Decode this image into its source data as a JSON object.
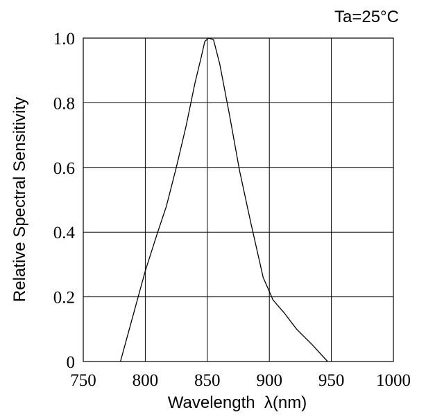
{
  "chart_data": {
    "type": "line",
    "annotation": "Ta=25°C",
    "xlabel": "Wavelength  λ(nm)",
    "ylabel": "Relative Spectral Sensitivity",
    "xlim": [
      750,
      1000
    ],
    "ylim": [
      0,
      1.0
    ],
    "x_ticks": [
      750,
      800,
      850,
      900,
      950,
      1000
    ],
    "x_tick_labels": [
      "750",
      "800",
      "850",
      "900",
      "950",
      "1000"
    ],
    "y_ticks": [
      0,
      0.2,
      0.4,
      0.6,
      0.8,
      1.0
    ],
    "y_tick_labels": [
      "0",
      "0.2",
      "0.4",
      "0.6",
      "0.8",
      "1.0"
    ],
    "grid": true,
    "series": [
      {
        "x": [
          780,
          790,
          800,
          810,
          817,
          825,
          833,
          840,
          845,
          848,
          851,
          855,
          860,
          868,
          876,
          885,
          895,
          903,
          912,
          922,
          935,
          947
        ],
        "y": [
          0.0,
          0.14,
          0.28,
          0.4,
          0.48,
          0.6,
          0.73,
          0.86,
          0.94,
          0.99,
          1.0,
          0.995,
          0.92,
          0.76,
          0.59,
          0.43,
          0.26,
          0.19,
          0.15,
          0.1,
          0.05,
          0.0
        ]
      }
    ]
  }
}
